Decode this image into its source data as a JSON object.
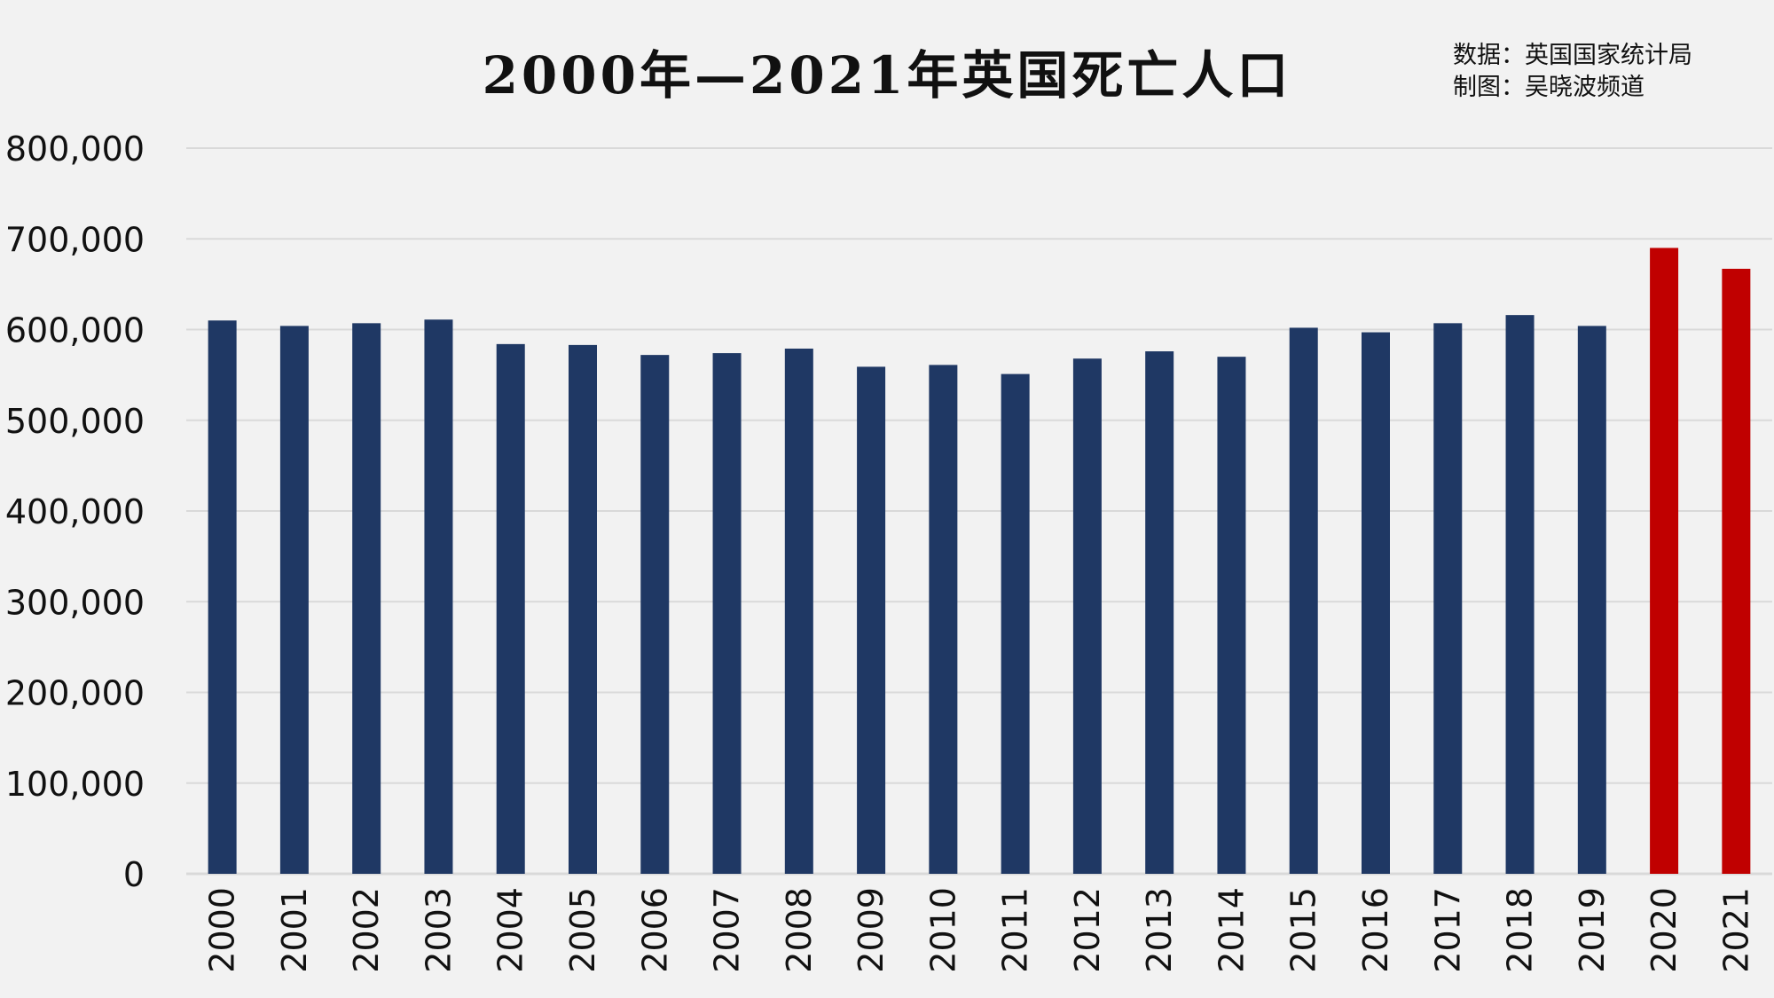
{
  "chart_data": {
    "type": "bar",
    "title": "2000年—2021年英国死亡人口",
    "source": "数据：英国国家统计局",
    "credit": "制图：吴晓波频道",
    "xlabel": "",
    "ylabel": "",
    "ylim": [
      0,
      800000
    ],
    "yticks": [
      "0",
      "100,000",
      "200,000",
      "300,000",
      "400,000",
      "500,000",
      "600,000",
      "700,000",
      "800,000"
    ],
    "grid": true,
    "categories": [
      "2000",
      "2001",
      "2002",
      "2003",
      "2004",
      "2005",
      "2006",
      "2007",
      "2008",
      "2009",
      "2010",
      "2011",
      "2012",
      "2013",
      "2014",
      "2015",
      "2016",
      "2017",
      "2018",
      "2019",
      "2020",
      "2021"
    ],
    "values": [
      610000,
      604000,
      607000,
      611000,
      584000,
      583000,
      572000,
      574000,
      579000,
      559000,
      561000,
      551000,
      568000,
      576000,
      570000,
      602000,
      597000,
      607000,
      616000,
      604000,
      690000,
      667000
    ],
    "colors": {
      "default": "#1f3864",
      "highlight": "#c00000",
      "highlight_categories": [
        "2020",
        "2021"
      ],
      "grid": "#d9d9d9",
      "axis": "#d9d9d9"
    }
  }
}
